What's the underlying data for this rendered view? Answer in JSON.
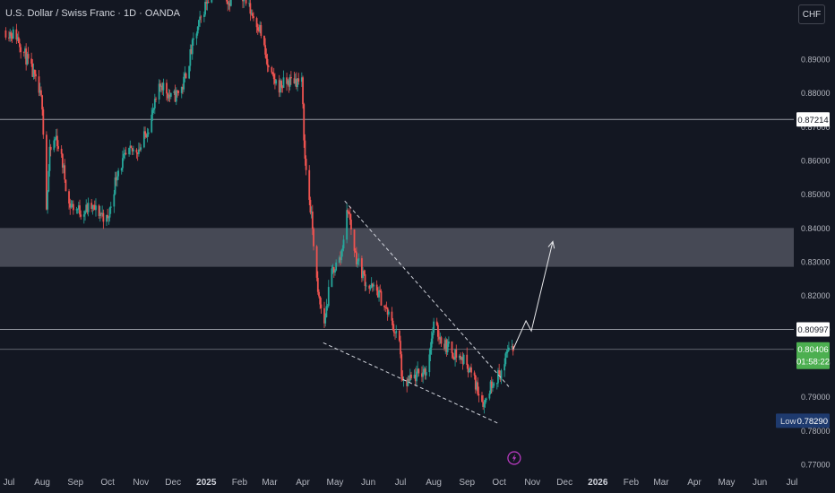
{
  "header": {
    "symbol_title": "U.S. Dollar / Swiss Franc · 1D · OANDA",
    "currency_button": "CHF"
  },
  "colors": {
    "background": "#131722",
    "up": "#26a69a",
    "down": "#ef5350",
    "zone": "#5d606b",
    "current_price_bg": "#4caf50",
    "low_badge_bg": "#1e3a6e"
  },
  "icons": {
    "events": "lightning-icon"
  },
  "chart_data": {
    "type": "candlestick",
    "y_ticks": [
      "0.89000",
      "0.88000",
      "0.87000",
      "0.86000",
      "0.85000",
      "0.84000",
      "0.83000",
      "0.82000",
      "0.81000",
      "0.80000",
      "0.79000",
      "0.78000",
      "0.77000"
    ],
    "y_tick_values": [
      0.89,
      0.88,
      0.87,
      0.86,
      0.85,
      0.84,
      0.83,
      0.82,
      0.81,
      0.8,
      0.79,
      0.78,
      0.77
    ],
    "ylim": [
      0.7669,
      0.9059
    ],
    "x_ticks": [
      {
        "label": "Jul",
        "date": "2024-07-01",
        "bold": false
      },
      {
        "label": "Aug",
        "date": "2024-08-01",
        "bold": false
      },
      {
        "label": "Sep",
        "date": "2024-09-01",
        "bold": false
      },
      {
        "label": "Oct",
        "date": "2024-10-01",
        "bold": false
      },
      {
        "label": "Nov",
        "date": "2024-11-01",
        "bold": false
      },
      {
        "label": "Dec",
        "date": "2024-12-01",
        "bold": false
      },
      {
        "label": "2025",
        "date": "2025-01-01",
        "bold": true
      },
      {
        "label": "Feb",
        "date": "2025-02-01",
        "bold": false
      },
      {
        "label": "Mar",
        "date": "2025-03-01",
        "bold": false
      },
      {
        "label": "Apr",
        "date": "2025-04-01",
        "bold": false
      },
      {
        "label": "May",
        "date": "2025-05-01",
        "bold": false
      },
      {
        "label": "Jun",
        "date": "2025-06-01",
        "bold": false
      },
      {
        "label": "Jul",
        "date": "2025-07-01",
        "bold": false
      },
      {
        "label": "Aug",
        "date": "2025-08-01",
        "bold": false
      },
      {
        "label": "Sep",
        "date": "2025-09-01",
        "bold": false
      },
      {
        "label": "Oct",
        "date": "2025-10-01",
        "bold": false
      },
      {
        "label": "Nov",
        "date": "2025-11-01",
        "bold": false
      },
      {
        "label": "Dec",
        "date": "2025-12-01",
        "bold": false
      },
      {
        "label": "2026",
        "date": "2026-01-01",
        "bold": true
      },
      {
        "label": "Feb",
        "date": "2026-02-01",
        "bold": false
      },
      {
        "label": "Mar",
        "date": "2026-03-01",
        "bold": false
      },
      {
        "label": "Apr",
        "date": "2026-04-01",
        "bold": false
      },
      {
        "label": "May",
        "date": "2026-05-01",
        "bold": false
      },
      {
        "label": "Jun",
        "date": "2026-06-01",
        "bold": false
      },
      {
        "label": "Jul",
        "date": "2026-07-01",
        "bold": false
      }
    ],
    "price_path": [
      [
        "2024-06-28",
        0.8985
      ],
      [
        "2024-07-08",
        0.897
      ],
      [
        "2024-07-15",
        0.892
      ],
      [
        "2024-07-24",
        0.885
      ],
      [
        "2024-08-01",
        0.877
      ],
      [
        "2024-08-05",
        0.846
      ],
      [
        "2024-08-08",
        0.862
      ],
      [
        "2024-08-14",
        0.867
      ],
      [
        "2024-08-20",
        0.859
      ],
      [
        "2024-08-26",
        0.847
      ],
      [
        "2024-09-06",
        0.845
      ],
      [
        "2024-09-16",
        0.846
      ],
      [
        "2024-09-26",
        0.844
      ],
      [
        "2024-10-01",
        0.842
      ],
      [
        "2024-10-10",
        0.857
      ],
      [
        "2024-10-20",
        0.862
      ],
      [
        "2024-11-01",
        0.864
      ],
      [
        "2024-11-12",
        0.874
      ],
      [
        "2024-11-20",
        0.883
      ],
      [
        "2024-11-30",
        0.878
      ],
      [
        "2024-12-10",
        0.882
      ],
      [
        "2024-12-20",
        0.895
      ],
      [
        "2025-01-02",
        0.908
      ],
      [
        "2025-01-13",
        0.914
      ],
      [
        "2025-01-22",
        0.907
      ],
      [
        "2025-01-31",
        0.912
      ],
      [
        "2025-02-10",
        0.905
      ],
      [
        "2025-02-20",
        0.899
      ],
      [
        "2025-03-01",
        0.885
      ],
      [
        "2025-03-10",
        0.882
      ],
      [
        "2025-03-24",
        0.884
      ],
      [
        "2025-03-31",
        0.883
      ],
      [
        "2025-04-03",
        0.86
      ],
      [
        "2025-04-10",
        0.84
      ],
      [
        "2025-04-15",
        0.82
      ],
      [
        "2025-04-21",
        0.812
      ],
      [
        "2025-04-28",
        0.827
      ],
      [
        "2025-05-06",
        0.831
      ],
      [
        "2025-05-13",
        0.846
      ],
      [
        "2025-05-20",
        0.832
      ],
      [
        "2025-05-31",
        0.823
      ],
      [
        "2025-06-10",
        0.821
      ],
      [
        "2025-06-20",
        0.814
      ],
      [
        "2025-06-30",
        0.806
      ],
      [
        "2025-07-03",
        0.793
      ],
      [
        "2025-07-15",
        0.796
      ],
      [
        "2025-07-25",
        0.798
      ],
      [
        "2025-08-01",
        0.811
      ],
      [
        "2025-08-10",
        0.806
      ],
      [
        "2025-08-20",
        0.803
      ],
      [
        "2025-09-01",
        0.8
      ],
      [
        "2025-09-10",
        0.793
      ],
      [
        "2025-09-17",
        0.788
      ],
      [
        "2025-09-25",
        0.795
      ],
      [
        "2025-10-01",
        0.7965
      ],
      [
        "2025-10-06",
        0.799
      ],
      [
        "2025-10-10",
        0.806
      ],
      [
        "2025-10-14",
        0.804
      ]
    ],
    "resistance_zone": {
      "low": 0.8285,
      "high": 0.84
    },
    "horizontal_lines": [
      {
        "price": 0.87214,
        "label": "0.87214"
      },
      {
        "price": 0.80997,
        "label": "0.80997"
      }
    ],
    "falling_wedge": {
      "upper": [
        [
          "2025-05-10",
          0.848
        ],
        [
          "2025-10-10",
          0.793
        ]
      ],
      "lower": [
        [
          "2025-04-20",
          0.806
        ],
        [
          "2025-10-01",
          0.782
        ]
      ]
    },
    "projection_path": [
      [
        "2025-10-14",
        0.804
      ],
      [
        "2025-10-26",
        0.8125
      ],
      [
        "2025-10-31",
        0.8095
      ],
      [
        "2025-11-20",
        0.836
      ]
    ],
    "current_price": {
      "price": 0.80406,
      "label": "0.80406",
      "countdown": "01:58:22"
    },
    "low_marker": {
      "price": 0.7829,
      "label": "Low",
      "value": "0.78290"
    }
  }
}
